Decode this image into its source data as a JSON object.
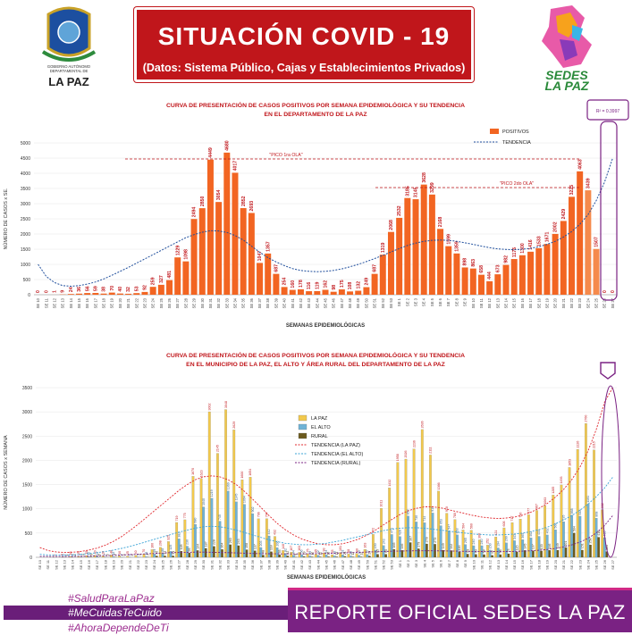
{
  "header": {
    "title": "SITUACIÓN  COVID - 19",
    "subtitle": "(Datos: Sistema Público, Cajas y Establecimientos Privados)",
    "left_logo_text": [
      "GOBIERNO AUTÓNOMO",
      "DEPARTAMENTAL DE",
      "LA PAZ"
    ],
    "right_logo_text": [
      "SEDES",
      "LA PAZ"
    ]
  },
  "footer": {
    "hashtags": [
      "#SaludParaLaPaz",
      "#MeCuidasTeCuido",
      "#AhoraDependeDeTi"
    ],
    "report": "REPORTE OFICIAL SEDES LA PAZ"
  },
  "colors": {
    "red": "#c0161b",
    "orange": "#f26522",
    "yellow": "#f2c94c",
    "blue": "#6fb3d6",
    "olive": "#6b5a1e",
    "purple": "#7a2283"
  },
  "chart_data": [
    {
      "type": "bar",
      "title": "CURVA DE PRESENTACIÓN DE CASOS POSITIVOS POR SEMANA EPIDEMIOLÓGICA Y SU TENDENCIA",
      "subtitle": "EN EL DEPARTAMENTO DE LA PAZ",
      "xlabel": "SEMANAS EPIDEMIOLÓGICAS",
      "ylabel": "NÚMERO DE CASOS x SE.",
      "ylim": [
        0,
        5000
      ],
      "yticks": [
        0,
        500,
        1000,
        1500,
        2000,
        2500,
        3000,
        3500,
        4000,
        4500,
        5000
      ],
      "legend": [
        "POSITIVOS",
        "TENDENCIA"
      ],
      "legend_position": "top-right",
      "r2": "R² = 0.3997",
      "annotations": [
        "\"PICO 1ra OLA\"",
        "\"PICO 2do OLA\""
      ],
      "categories": [
        "SE 10",
        "SE 11",
        "SE 12",
        "SE 13",
        "SE 14",
        "SE 15",
        "SE 16",
        "SE 17",
        "SE 18",
        "SE 19",
        "SE 20",
        "SE 21",
        "SE 22",
        "SE 23",
        "SE 24",
        "SE 25",
        "SE 26",
        "SE 27",
        "SE 28",
        "SE 29",
        "SE 30",
        "SE 31",
        "SE 32",
        "SE 33",
        "SE 34",
        "SE 35",
        "SE 36",
        "SE 37",
        "SE 38",
        "SE 39",
        "SE 40",
        "SE 41",
        "SE 42",
        "SE 43",
        "SE 44",
        "SE 45",
        "SE 46",
        "SE 47",
        "SE 48",
        "SE 49",
        "SE 50",
        "SE 51",
        "SE 52",
        "SE 53",
        "SE 1",
        "SE 2",
        "SE 3",
        "SE 4",
        "SE 5",
        "SE 6",
        "SE 7",
        "SE 8",
        "SE 9",
        "SE 10",
        "SE 11",
        "SE 12",
        "SE 13",
        "SE 14",
        "SE 15",
        "SE 16",
        "SE 17",
        "SE 18",
        "SE 19",
        "SE 20",
        "SE 21",
        "SE 22",
        "SE 23",
        "SE 24",
        "SE 25",
        "SE 26",
        "SE 27"
      ],
      "values": [
        0,
        0,
        1,
        9,
        24,
        36,
        56,
        59,
        38,
        70,
        40,
        32,
        53,
        92,
        259,
        327,
        481,
        1229,
        1098,
        2494,
        2850,
        4449,
        3054,
        4680,
        4017,
        2852,
        2693,
        1047,
        1357,
        687,
        254,
        160,
        178,
        116,
        119,
        162,
        98,
        175,
        108,
        132,
        249,
        687,
        1319,
        2068,
        2532,
        3185,
        3145,
        3628,
        3299,
        2168,
        1599,
        1359,
        898,
        863,
        658,
        444,
        673,
        982,
        1175,
        1300,
        1416,
        1533,
        1671,
        2002,
        2429,
        3225,
        4063,
        3439,
        1507,
        0,
        0
      ],
      "trend": [
        1000,
        600,
        400,
        300,
        280,
        300,
        350,
        420,
        520,
        640,
        770,
        900,
        1040,
        1180,
        1320,
        1460,
        1600,
        1740,
        1880,
        1980,
        2060,
        2110,
        2100,
        2050,
        1950,
        1800,
        1600,
        1400,
        1220,
        1080,
        960,
        860,
        800,
        770,
        760,
        770,
        800,
        850,
        920,
        1000,
        1090,
        1190,
        1300,
        1410,
        1520,
        1620,
        1700,
        1760,
        1790,
        1800,
        1790,
        1760,
        1710,
        1660,
        1600,
        1550,
        1510,
        1490,
        1480,
        1500,
        1530,
        1580,
        1660,
        1760,
        1900,
        2080,
        2320,
        2640,
        3100,
        3700,
        4500
      ]
    },
    {
      "type": "bar",
      "title": "CURVA DE PRESENTACIÓN DE CASOS POSITIVOS POR SEMANA EPIDEMIOLÓGICA Y SU TENDENCIA",
      "subtitle": "EN EL  MUNICIPIO DE LA PAZ, EL ALTO Y ÁREA RURAL DEL DEPARTAMENTO DE LA PAZ",
      "xlabel": "SEMANAS EPIDEMIOLÓGICAS",
      "ylabel": "NÚMERO DE CASOS x SEMANA",
      "ylim": [
        0,
        3500
      ],
      "yticks": [
        0,
        500,
        1000,
        1500,
        2000,
        2500,
        3000,
        3500
      ],
      "legend": [
        "LA PAZ",
        "EL ALTO",
        "RURAL",
        "TENDENCIA (LA PAZ)",
        "TENDENCIA (EL ALTO)",
        "TENDENCIA (RURAL)"
      ],
      "legend_position": "center",
      "categories": [
        "SE 10",
        "SE 11",
        "SE 12",
        "SE 13",
        "SE 14",
        "SE 15",
        "SE 16",
        "SE 17",
        "SE 18",
        "SE 19",
        "SE 20",
        "SE 21",
        "SE 22",
        "SE 23",
        "SE 24",
        "SE 25",
        "SE 26",
        "SE 27",
        "SE 28",
        "SE 29",
        "SE 30",
        "SE 31",
        "SE 32",
        "SE 33",
        "SE 34",
        "SE 35",
        "SE 36",
        "SE 37",
        "SE 38",
        "SE 39",
        "SE 40",
        "SE 41",
        "SE 42",
        "SE 43",
        "SE 44",
        "SE 45",
        "SE 46",
        "SE 47",
        "SE 48",
        "SE 49",
        "SE 50",
        "SE 51",
        "SE 52",
        "SE 53",
        "SE 1",
        "SE 2",
        "SE 3",
        "SE 4",
        "SE 5",
        "SE 6",
        "SE 7",
        "SE 8",
        "SE 9",
        "SE 10",
        "SE 11",
        "SE 12",
        "SE 13",
        "SE 14",
        "SE 15",
        "SE 16",
        "SE 17",
        "SE 18",
        "SE 19",
        "SE 20",
        "SE 21",
        "SE 22",
        "SE 23",
        "SE 24",
        "SE 25",
        "SE 26",
        "SE 27"
      ],
      "series": [
        {
          "name": "LA PAZ",
          "values": [
            0,
            0,
            1,
            6,
            18,
            25,
            35,
            40,
            28,
            48,
            30,
            25,
            40,
            70,
            160,
            208,
            325,
            719,
            775,
            1670,
            1623,
            3002,
            2145,
            3048,
            2629,
            1600,
            1654,
            796,
            797,
            432,
            140,
            107,
            103,
            75,
            65,
            93,
            55,
            101,
            68,
            80,
            163,
            472,
            1011,
            1432,
            1958,
            2026,
            2236,
            2636,
            2111,
            1366,
            910,
            780,
            564,
            560,
            360,
            252,
            421,
            608,
            717,
            790,
            877,
            967,
            1063,
            1285,
            1493,
            1853,
            2226,
            2760,
            2215,
            982,
            0
          ]
        },
        {
          "name": "EL ALTO",
          "values": [
            0,
            0,
            0,
            2,
            4,
            7,
            12,
            14,
            7,
            15,
            7,
            5,
            9,
            15,
            69,
            88,
            125,
            382,
            230,
            680,
            1040,
            1219,
            745,
            1369,
            1145,
            1094,
            902,
            203,
            442,
            200,
            82,
            44,
            56,
            29,
            42,
            54,
            30,
            53,
            28,
            40,
            57,
            150,
            243,
            471,
            428,
            852,
            730,
            714,
            915,
            653,
            547,
            463,
            265,
            240,
            240,
            150,
            194,
            299,
            343,
            365,
            402,
            433,
            462,
            568,
            735,
            868,
            848,
            1101,
            808,
            405,
            0
          ]
        },
        {
          "name": "RURAL",
          "values": [
            0,
            0,
            0,
            1,
            2,
            4,
            9,
            5,
            3,
            7,
            3,
            2,
            4,
            7,
            30,
            31,
            31,
            128,
            93,
            144,
            187,
            228,
            164,
            263,
            243,
            158,
            137,
            48,
            118,
            55,
            32,
            9,
            19,
            12,
            12,
            15,
            13,
            21,
            12,
            12,
            29,
            65,
            65,
            165,
            146,
            307,
            179,
            278,
            273,
            149,
            142,
            116,
            69,
            63,
            58,
            42,
            58,
            75,
            115,
            145,
            137,
            133,
            146,
            149,
            201,
            504,
            151,
            258,
            416,
            120,
            0
          ]
        }
      ],
      "trends": [
        {
          "name": "TENDENCIA (LA PAZ)",
          "values": [
            200,
            140,
            110,
            100,
            105,
            120,
            150,
            190,
            250,
            330,
            430,
            550,
            680,
            820,
            960,
            1100,
            1240,
            1380,
            1500,
            1600,
            1660,
            1680,
            1660,
            1600,
            1500,
            1360,
            1200,
            1030,
            860,
            700,
            570,
            460,
            380,
            320,
            280,
            260,
            260,
            280,
            320,
            380,
            460,
            560,
            670,
            780,
            880,
            960,
            1010,
            1040,
            1040,
            1020,
            980,
            940,
            900,
            860,
            830,
            810,
            800,
            810,
            830,
            870,
            930,
            1010,
            1110,
            1240,
            1400,
            1600,
            1860,
            2200,
            2640,
            3200,
            3900
          ]
        },
        {
          "name": "TENDENCIA (EL ALTO)",
          "values": [
            60,
            50,
            45,
            45,
            50,
            60,
            75,
            95,
            120,
            150,
            185,
            225,
            270,
            320,
            370,
            420,
            470,
            520,
            560,
            600,
            630,
            640,
            630,
            600,
            560,
            510,
            460,
            410,
            360,
            320,
            290,
            270,
            260,
            260,
            270,
            290,
            320,
            350,
            390,
            430,
            470,
            510,
            550,
            580,
            600,
            610,
            610,
            600,
            580,
            560,
            540,
            520,
            500,
            480,
            470,
            460,
            460,
            470,
            480,
            500,
            530,
            570,
            620,
            690,
            770,
            860,
            970,
            1100,
            1250,
            1430,
            1650
          ]
        },
        {
          "name": "TENDENCIA (RURAL)",
          "values": [
            20,
            18,
            17,
            17,
            18,
            20,
            24,
            28,
            34,
            40,
            47,
            55,
            63,
            72,
            80,
            88,
            95,
            100,
            104,
            106,
            106,
            104,
            100,
            95,
            90,
            85,
            80,
            76,
            73,
            71,
            70,
            70,
            71,
            73,
            76,
            80,
            85,
            90,
            96,
            102,
            108,
            114,
            120,
            125,
            129,
            132,
            134,
            135,
            134,
            132,
            130,
            127,
            124,
            121,
            119,
            118,
            118,
            119,
            122,
            127,
            135,
            146,
            162,
            184,
            214,
            256,
            314,
            394,
            504,
            654,
            860
          ]
        }
      ]
    }
  ]
}
